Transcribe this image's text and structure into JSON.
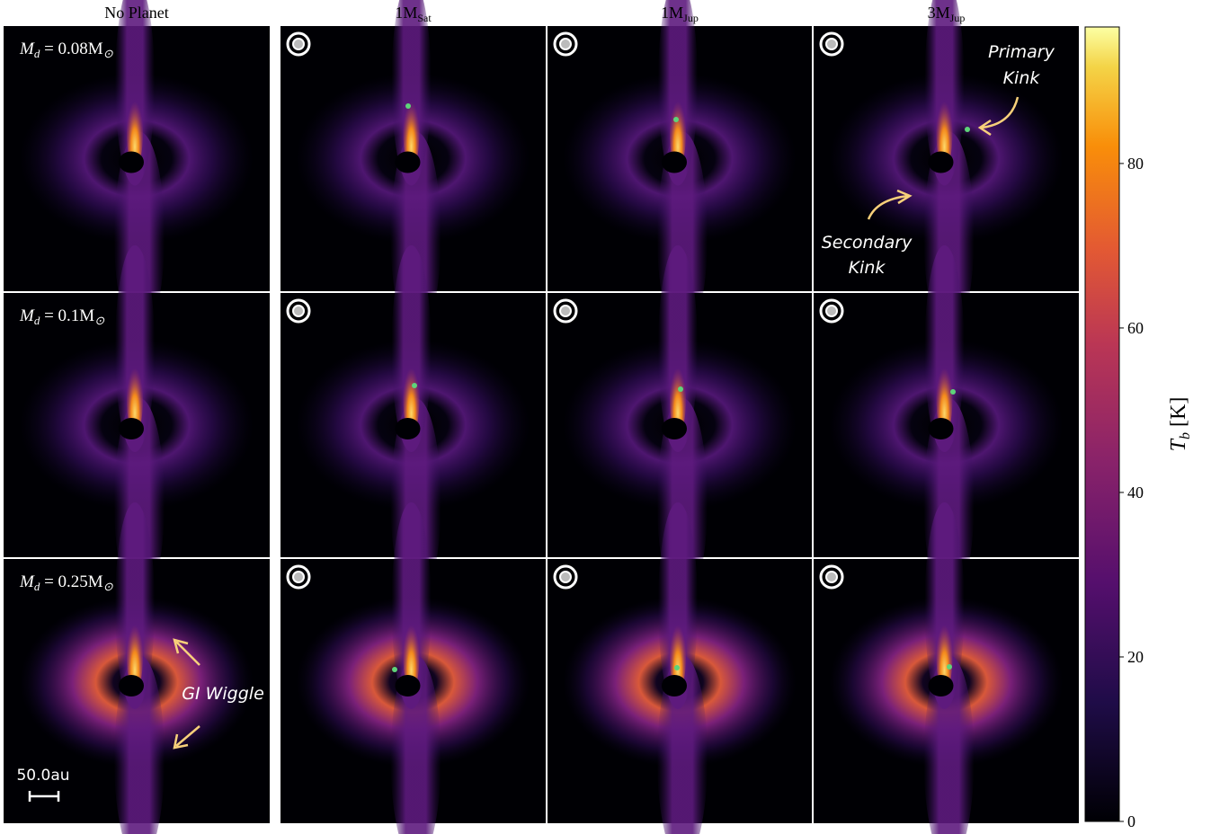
{
  "columns": [
    {
      "main": "No Planet"
    },
    {
      "main": "1M",
      "sub": "Sat"
    },
    {
      "main": "1M",
      "sub": "Jup"
    },
    {
      "main": "3M",
      "sub": "Jup"
    }
  ],
  "rows": [
    {
      "main": "M",
      "sub": "d",
      "rest": " = 0.08M",
      "rest_sub": "⊙"
    },
    {
      "main": "M",
      "sub": "d",
      "rest": " = 0.1M",
      "rest_sub": "⊙"
    },
    {
      "main": "M",
      "sub": "d",
      "rest": " = 0.25M",
      "rest_sub": "⊙"
    }
  ],
  "annotations": {
    "primary": [
      "Primary",
      "Kink"
    ],
    "secondary": [
      "Secondary",
      "Kink"
    ],
    "wiggle": "GI Wiggle",
    "scale": "50.0au"
  },
  "colorbar": {
    "label": {
      "main": "T",
      "sub": "b",
      "rest": " [K]"
    },
    "lim": [
      0,
      96.6
    ],
    "ticks": [
      0,
      20,
      40,
      60,
      80
    ]
  }
}
